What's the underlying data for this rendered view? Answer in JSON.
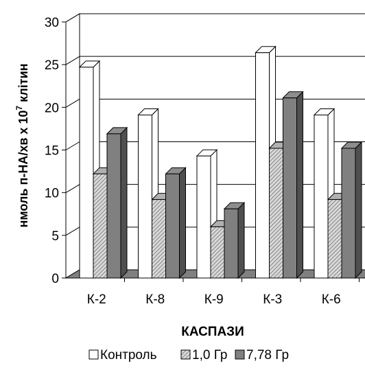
{
  "chart_data": {
    "type": "bar",
    "categories": [
      "К-2",
      "К-8",
      "К-9",
      "К-3",
      "К-6"
    ],
    "series": [
      {
        "name": "Контроль",
        "values": [
          24.7,
          19.1,
          14.3,
          26.4,
          19.1
        ],
        "color": "#ffffff"
      },
      {
        "name": "1,0 Гр",
        "values": [
          12.2,
          9.2,
          6.0,
          15.2,
          9.2
        ],
        "color": "#bdbdbd"
      },
      {
        "name": "7,78 Гр",
        "values": [
          16.9,
          12.2,
          8.1,
          21.1,
          15.2
        ],
        "color": "#808080"
      }
    ],
    "xlabel": "КАСПАЗИ",
    "ylabel_main": "нмоль п-НА/хв х 10",
    "ylabel_sup": "7",
    "ylabel_tail": " клітин",
    "ylim": [
      0,
      30
    ],
    "yticks": [
      "0",
      "5",
      "10",
      "15",
      "20",
      "25",
      "30"
    ],
    "grid": true,
    "legend_position": "bottom"
  }
}
